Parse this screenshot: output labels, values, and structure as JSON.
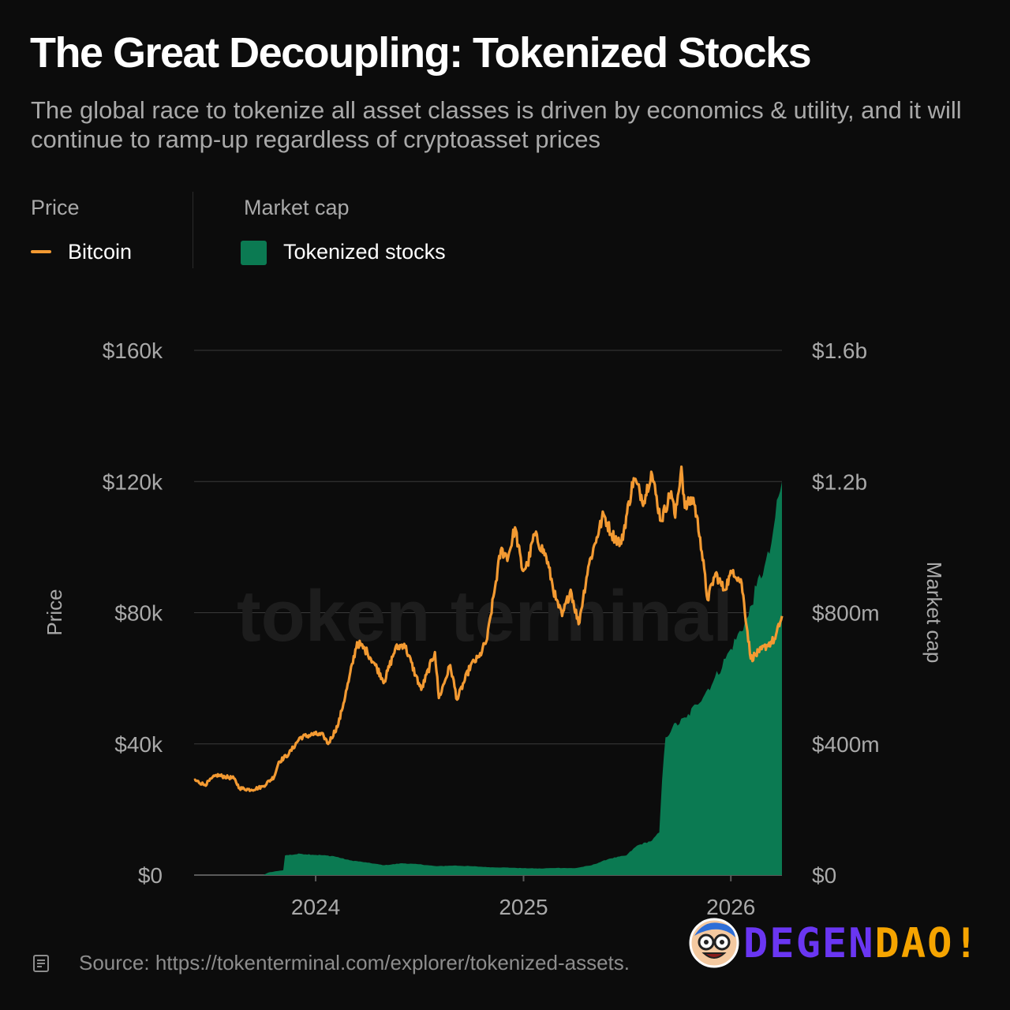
{
  "header": {
    "title": "The Great Decoupling: Tokenized Stocks",
    "subtitle": "The global race to tokenize all asset classes is driven by economics & utility, and it will continue to ramp-up regardless of cryptoasset prices"
  },
  "legend": {
    "price_head": "Price",
    "price_series": "Bitcoin",
    "cap_head": "Market cap",
    "cap_series": "Tokenized stocks"
  },
  "colors": {
    "bitcoin": "#f39a32",
    "tokenized_stocks": "#0b7a52",
    "grid": "#3a3a3a",
    "axis_text": "#a9a9a9"
  },
  "watermark": "token terminal_",
  "source": "Source: https://tokenterminal.com/explorer/tokenized-assets.",
  "brand": {
    "part1": "DEGEN",
    "part2": "DAO!",
    "icon": "cartoon-face-icon"
  },
  "chart_data": {
    "type": "line+area",
    "x_range": [
      "2023-06-01",
      "2026-04-01"
    ],
    "x_ticks": [
      "2024",
      "2025",
      "2026"
    ],
    "y_left": {
      "label": "Price",
      "ylim": [
        0,
        160000
      ],
      "ticks": [
        "$0",
        "$40k",
        "$80k",
        "$120k",
        "$160k"
      ]
    },
    "y_right": {
      "label": "Market cap",
      "ylim": [
        0,
        1600000000
      ],
      "ticks": [
        "$0",
        "$400m",
        "$800m",
        "$1.2b",
        "$1.6b"
      ]
    },
    "grid": "horizontal",
    "series": [
      {
        "name": "Bitcoin",
        "axis": "left",
        "kind": "line",
        "points": [
          [
            "2023-06-01",
            29000
          ],
          [
            "2023-06-20",
            27500
          ],
          [
            "2023-07-10",
            30500
          ],
          [
            "2023-07-25",
            30000
          ],
          [
            "2023-08-10",
            29500
          ],
          [
            "2023-08-20",
            26500
          ],
          [
            "2023-09-10",
            26000
          ],
          [
            "2023-09-30",
            27000
          ],
          [
            "2023-10-20",
            30000
          ],
          [
            "2023-10-28",
            34500
          ],
          [
            "2023-11-15",
            37000
          ],
          [
            "2023-12-05",
            42000
          ],
          [
            "2023-12-31",
            43000
          ],
          [
            "2024-01-15",
            42500
          ],
          [
            "2024-01-23",
            40000
          ],
          [
            "2024-02-10",
            46000
          ],
          [
            "2024-02-28",
            59000
          ],
          [
            "2024-03-14",
            71000
          ],
          [
            "2024-04-01",
            68000
          ],
          [
            "2024-04-15",
            64000
          ],
          [
            "2024-05-01",
            59000
          ],
          [
            "2024-05-20",
            69000
          ],
          [
            "2024-06-05",
            70500
          ],
          [
            "2024-06-25",
            61000
          ],
          [
            "2024-07-05",
            56500
          ],
          [
            "2024-07-29",
            68000
          ],
          [
            "2024-08-05",
            54000
          ],
          [
            "2024-08-25",
            64000
          ],
          [
            "2024-09-06",
            53500
          ],
          [
            "2024-09-30",
            64000
          ],
          [
            "2024-10-15",
            66500
          ],
          [
            "2024-10-29",
            72000
          ],
          [
            "2024-11-12",
            88000
          ],
          [
            "2024-11-22",
            99000
          ],
          [
            "2024-12-05",
            97000
          ],
          [
            "2024-12-17",
            106000
          ],
          [
            "2024-12-30",
            93000
          ],
          [
            "2025-01-08",
            94500
          ],
          [
            "2025-01-20",
            104000
          ],
          [
            "2025-02-10",
            97000
          ],
          [
            "2025-02-27",
            84000
          ],
          [
            "2025-03-10",
            79000
          ],
          [
            "2025-03-25",
            87000
          ],
          [
            "2025-04-08",
            76500
          ],
          [
            "2025-04-25",
            94000
          ],
          [
            "2025-05-10",
            103000
          ],
          [
            "2025-05-22",
            110000
          ],
          [
            "2025-06-05",
            104000
          ],
          [
            "2025-06-22",
            101000
          ],
          [
            "2025-07-14",
            121000
          ],
          [
            "2025-08-01",
            114000
          ],
          [
            "2025-08-14",
            123000
          ],
          [
            "2025-08-31",
            108000
          ],
          [
            "2025-09-18",
            117000
          ],
          [
            "2025-09-25",
            109000
          ],
          [
            "2025-10-06",
            124500
          ],
          [
            "2025-10-12",
            112000
          ],
          [
            "2025-10-27",
            115000
          ],
          [
            "2025-11-08",
            103000
          ],
          [
            "2025-11-21",
            84000
          ],
          [
            "2025-12-05",
            92000
          ],
          [
            "2025-12-20",
            87000
          ],
          [
            "2026-01-05",
            93000
          ],
          [
            "2026-01-20",
            89000
          ],
          [
            "2026-02-05",
            66000
          ],
          [
            "2026-02-20",
            68000
          ],
          [
            "2026-03-05",
            70000
          ],
          [
            "2026-03-20",
            72000
          ],
          [
            "2026-04-01",
            79000
          ]
        ]
      },
      {
        "name": "Tokenized stocks",
        "axis": "right",
        "kind": "area",
        "points": [
          [
            "2023-06-01",
            0
          ],
          [
            "2023-10-01",
            0
          ],
          [
            "2023-10-10",
            8000000
          ],
          [
            "2023-11-05",
            15000000
          ],
          [
            "2023-11-08",
            60000000
          ],
          [
            "2023-12-05",
            65000000
          ],
          [
            "2024-02-01",
            58000000
          ],
          [
            "2024-03-01",
            45000000
          ],
          [
            "2024-04-01",
            38000000
          ],
          [
            "2024-05-01",
            30000000
          ],
          [
            "2024-06-01",
            36000000
          ],
          [
            "2024-07-01",
            33000000
          ],
          [
            "2024-08-01",
            27000000
          ],
          [
            "2024-09-01",
            29000000
          ],
          [
            "2024-10-01",
            27000000
          ],
          [
            "2024-11-01",
            24000000
          ],
          [
            "2024-12-01",
            23000000
          ],
          [
            "2025-01-01",
            21000000
          ],
          [
            "2025-02-01",
            20000000
          ],
          [
            "2025-03-01",
            22000000
          ],
          [
            "2025-04-01",
            21000000
          ],
          [
            "2025-05-01",
            30000000
          ],
          [
            "2025-06-01",
            50000000
          ],
          [
            "2025-07-01",
            60000000
          ],
          [
            "2025-07-20",
            90000000
          ],
          [
            "2025-08-15",
            105000000
          ],
          [
            "2025-08-28",
            130000000
          ],
          [
            "2025-09-02",
            290000000
          ],
          [
            "2025-09-08",
            420000000
          ],
          [
            "2025-09-20",
            450000000
          ],
          [
            "2025-10-15",
            480000000
          ],
          [
            "2025-11-01",
            520000000
          ],
          [
            "2025-12-01",
            590000000
          ],
          [
            "2026-01-01",
            690000000
          ],
          [
            "2026-02-01",
            790000000
          ],
          [
            "2026-02-15",
            880000000
          ],
          [
            "2026-03-01",
            940000000
          ],
          [
            "2026-03-10",
            980000000
          ],
          [
            "2026-03-20",
            1090000000
          ],
          [
            "2026-04-01",
            1200000000
          ]
        ]
      }
    ]
  }
}
